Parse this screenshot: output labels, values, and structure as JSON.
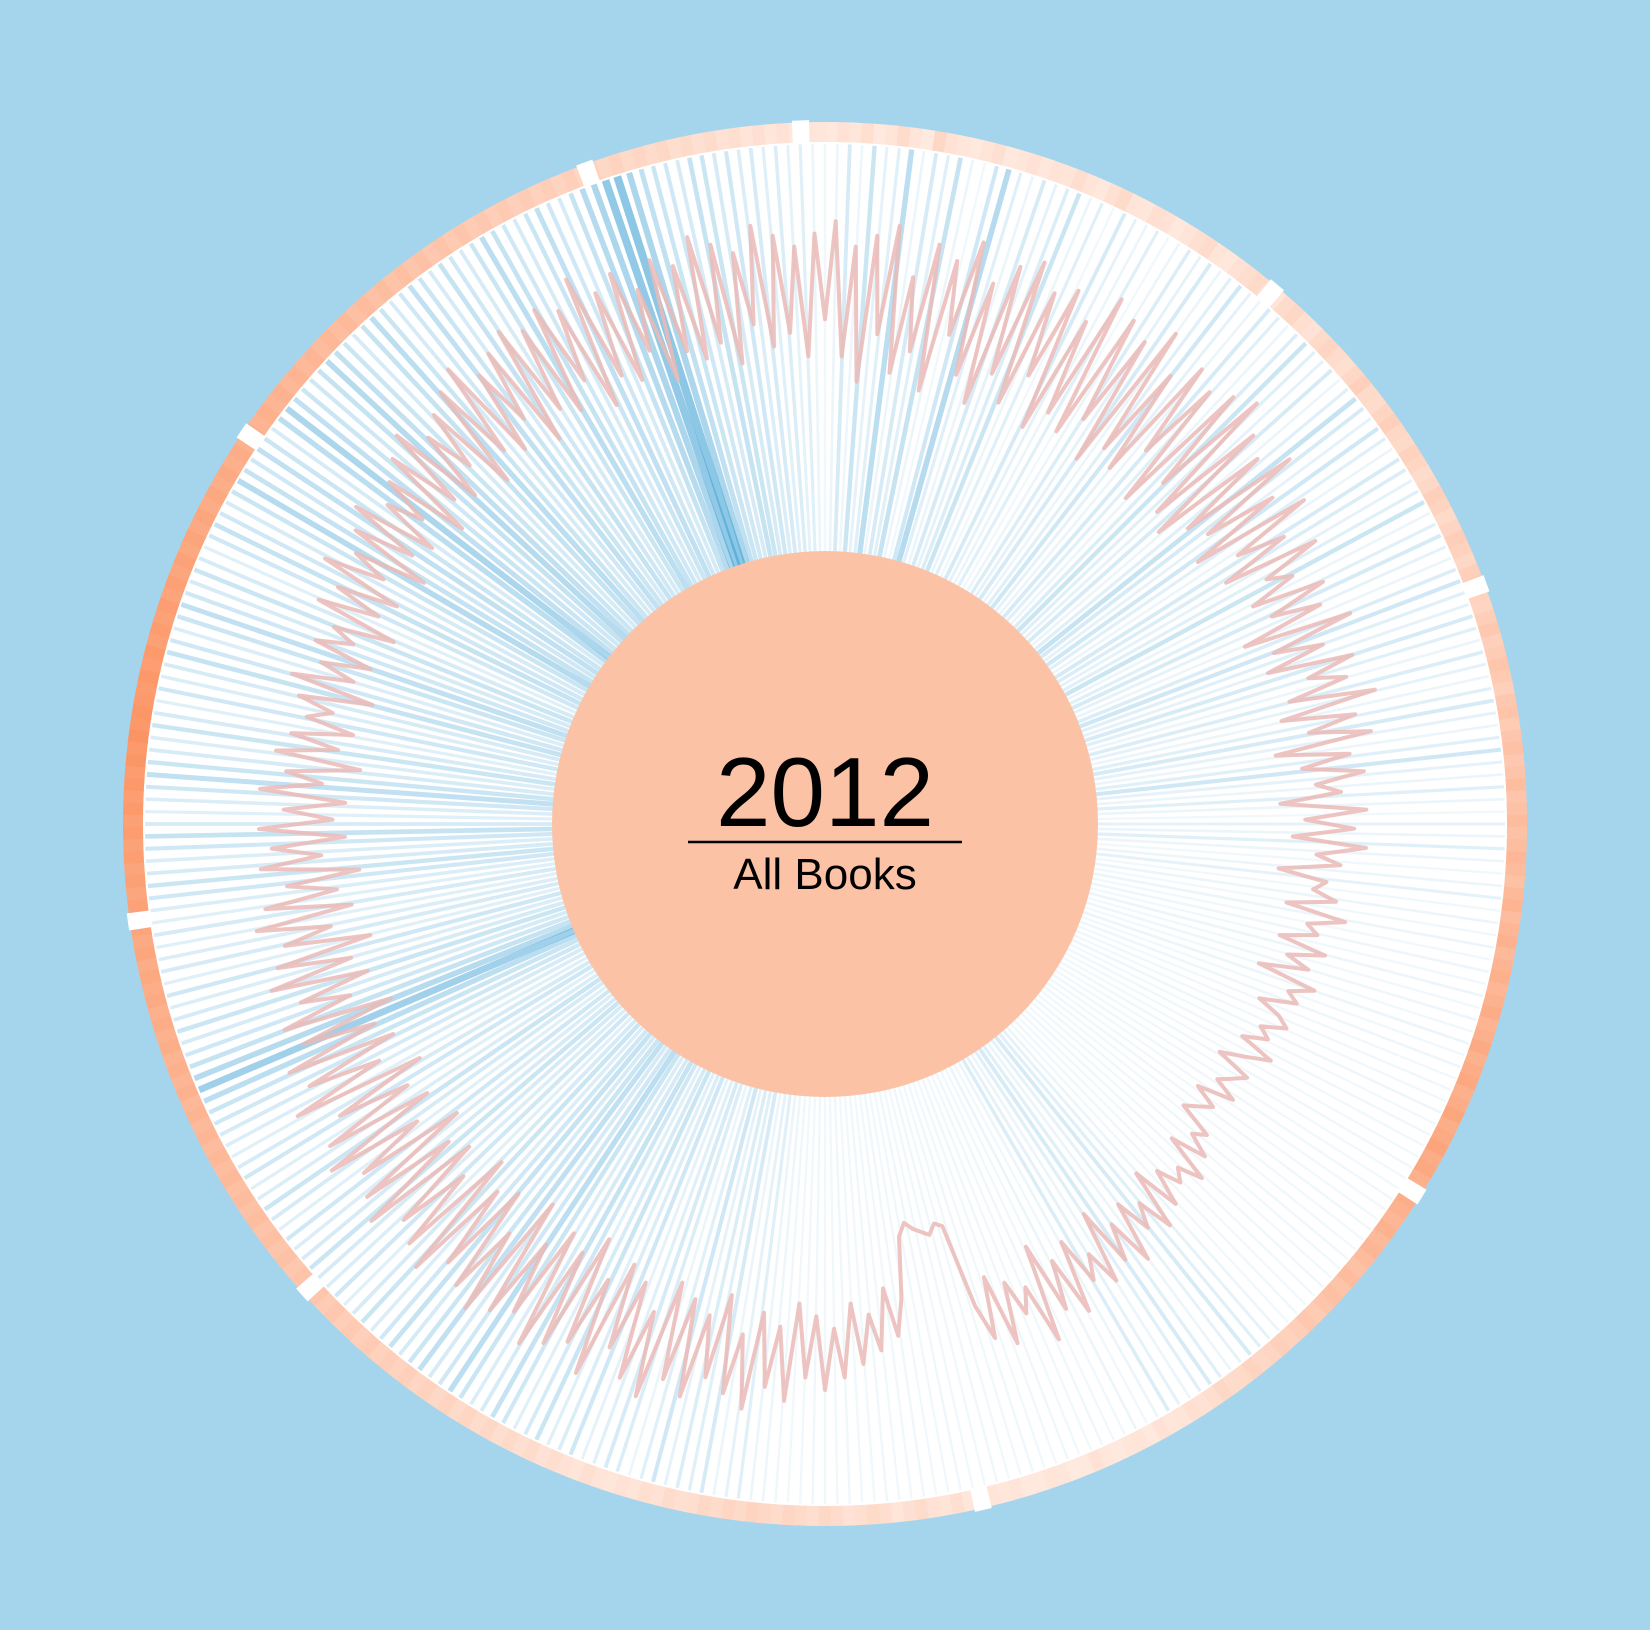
{
  "chart_data": {
    "type": "radial",
    "title": "2012",
    "subtitle": "All Books",
    "series": [
      {
        "name": "",
        "role": "outer-ring-heat",
        "values": [
          0.05,
          0.12,
          0.08,
          0.15,
          0.06,
          0.1,
          0.18,
          0.09,
          0.04,
          0.22,
          0.12,
          0.08,
          0.06,
          0.1,
          0.14,
          0.05,
          0.08,
          0.12,
          0.07,
          0.11,
          0.09,
          0.16,
          0.1,
          0.06,
          0.13,
          0.2,
          0.1,
          0.08,
          0.15,
          0.12,
          0.05,
          0.09,
          0.14,
          0.18,
          0.1,
          0.07,
          0.12,
          0.16,
          0.2,
          0.14,
          0.1,
          0.18,
          0.22,
          0.15,
          0.12,
          0.2,
          0.25,
          0.18,
          0.15,
          0.22,
          0.3,
          0.2,
          0.18,
          0.25,
          0.3,
          0.22,
          0.2,
          0.28,
          0.24,
          0.18,
          0.22,
          0.3,
          0.26,
          0.2,
          0.25,
          0.32,
          0.28,
          0.22,
          0.3,
          0.35,
          0.28,
          0.25,
          0.32,
          0.38,
          0.3,
          0.34,
          0.4,
          0.36,
          0.3,
          0.38,
          0.42,
          0.35,
          0.4,
          0.45,
          0.38,
          0.42,
          0.48,
          0.4,
          0.45,
          0.5,
          0.44,
          0.48,
          0.55,
          0.5,
          0.45,
          0.52,
          0.58,
          0.5,
          0.55,
          0.6,
          0.52,
          0.58,
          0.62,
          0.55,
          0.6,
          0.65,
          0.58,
          0.62,
          0.68,
          0.6,
          0.65,
          0.7,
          0.62,
          0.66,
          0.72,
          0.64,
          0.68,
          0.74,
          0.66,
          0.7,
          0.62,
          0.58,
          0.64,
          0.6,
          0.55,
          0.6,
          0.52,
          0.56,
          0.5,
          0.45,
          0.5,
          0.42,
          0.46,
          0.4,
          0.35,
          0.38,
          0.32,
          0.28,
          0.3,
          0.25,
          0.22,
          0.26,
          0.2,
          0.18,
          0.22,
          0.16,
          0.12,
          0.15,
          0.1,
          0.08,
          0.12,
          0.06,
          0.1,
          0.08,
          0.05,
          0.07,
          0.12,
          0.06,
          0.04,
          0.08,
          0.1,
          0.06,
          0.05,
          0.09,
          0.07,
          0.1,
          0.12,
          0.08,
          0.15,
          0.1,
          0.12,
          0.18,
          0.14,
          0.1,
          0.16,
          0.2,
          0.15,
          0.12,
          0.18,
          0.22,
          0.16,
          0.2,
          0.24,
          0.18,
          0.22,
          0.26,
          0.2,
          0.24,
          0.18,
          0.22,
          0.16,
          0.14,
          0.18,
          0.12,
          0.15,
          0.1,
          0.12,
          0.08,
          0.1,
          0.14,
          0.1,
          0.12,
          0.16,
          0.12,
          0.18,
          0.14,
          0.2,
          0.16,
          0.22,
          0.18,
          0.24,
          0.2,
          0.26,
          0.22,
          0.28,
          0.24,
          0.3,
          0.26,
          0.32,
          0.28,
          0.34,
          0.3,
          0.36,
          0.32,
          0.38,
          0.34,
          0.4,
          0.36,
          0.42,
          0.38,
          0.44,
          0.4,
          0.46,
          0.42,
          0.48,
          0.44,
          0.5,
          0.46,
          0.52,
          0.48,
          0.54,
          0.5,
          0.56,
          0.52,
          0.58,
          0.54,
          0.6,
          0.56,
          0.62,
          0.58,
          0.64,
          0.6,
          0.66,
          0.62,
          0.68,
          0.64,
          0.7,
          0.66,
          0.72,
          0.68,
          0.74,
          0.7,
          0.76,
          0.72,
          0.78,
          0.74,
          0.8,
          0.76,
          0.82,
          0.78,
          0.84,
          0.8,
          0.86,
          0.82,
          0.88,
          0.84,
          0.9,
          0.86,
          0.88,
          0.84,
          0.82,
          0.86,
          0.8,
          0.84,
          0.78,
          0.82,
          0.76,
          0.8,
          0.74,
          0.78,
          0.72,
          0.76,
          0.7,
          0.74,
          0.68,
          0.72,
          0.66,
          0.7,
          0.64,
          0.68,
          0.62,
          0.66,
          0.6,
          0.64,
          0.58,
          0.62,
          0.56,
          0.6,
          0.54,
          0.58,
          0.52,
          0.56,
          0.5,
          0.54,
          0.48,
          0.52,
          0.46,
          0.5,
          0.44,
          0.48,
          0.42,
          0.46,
          0.4,
          0.44,
          0.38,
          0.42,
          0.36,
          0.4,
          0.34,
          0.38,
          0.32,
          0.36,
          0.3,
          0.34,
          0.28,
          0.32,
          0.26,
          0.3,
          0.24,
          0.28,
          0.22,
          0.26,
          0.2,
          0.24,
          0.18,
          0.22,
          0.16,
          0.2,
          0.14,
          0.18,
          0.12,
          0.16,
          0.1,
          0.14,
          0.08,
          0.12,
          0.06,
          0.1,
          0.08
        ]
      },
      {
        "name": "",
        "role": "spoke-intensity",
        "values": [
          0.05,
          0.1,
          0.3,
          0.08,
          0.4,
          0.15,
          0.2,
          0.55,
          0.1,
          0.3,
          0.2,
          0.45,
          0.1,
          0.05,
          0.35,
          0.6,
          0.2,
          0.1,
          0.3,
          0.15,
          0.25,
          0.4,
          0.1,
          0.2,
          0.05,
          0.3,
          0.15,
          0.1,
          0.2,
          0.05,
          0.1,
          0.25,
          0.15,
          0.3,
          0.1,
          0.2,
          0.35,
          0.15,
          0.1,
          0.3,
          0.2,
          0.1,
          0.25,
          0.4,
          0.2,
          0.15,
          0.3,
          0.1,
          0.2,
          0.45,
          0.3,
          0.15,
          0.35,
          0.2,
          0.1,
          0.3,
          0.25,
          0.15,
          0.2,
          0.4,
          0.1,
          0.2,
          0.3,
          0.15,
          0.1,
          0.25,
          0.35,
          0.2,
          0.15,
          0.3,
          0.2,
          0.1,
          0.25,
          0.15,
          0.1,
          0.2,
          0.3,
          0.15,
          0.1,
          0.2,
          0.35,
          0.15,
          0.1,
          0.2,
          0.1,
          0.05,
          0.15,
          0.1,
          0.2,
          0.1,
          0.05,
          0.1,
          0.15,
          0.05,
          0.1,
          0.05,
          0.1,
          0.05,
          0.08,
          0.05,
          0.1,
          0.05,
          0.08,
          0.05,
          0.1,
          0.05,
          0.08,
          0.04,
          0.06,
          0.05,
          0.08,
          0.04,
          0.06,
          0.05,
          0.04,
          0.06,
          0.05,
          0.04,
          0.06,
          0.05,
          0.04,
          0.06,
          0.05,
          0.04,
          0.06,
          0.05,
          0.04,
          0.06,
          0.05,
          0.04,
          0.06,
          0.05,
          0.1,
          0.15,
          0.2,
          0.3,
          0.15,
          0.1,
          0.2,
          0.3,
          0.2,
          0.1,
          0.15,
          0.25,
          0.1,
          0.05,
          0.1,
          0.05,
          0.04,
          0.06,
          0.05,
          0.04,
          0.06,
          0.05,
          0.04,
          0.06,
          0.05,
          0.04,
          0.06,
          0.05,
          0.04,
          0.06,
          0.05,
          0.04,
          0.06,
          0.05,
          0.04,
          0.06,
          0.05,
          0.04,
          0.06,
          0.05,
          0.04,
          0.06,
          0.05,
          0.04,
          0.06,
          0.08,
          0.1,
          0.2,
          0.15,
          0.1,
          0.3,
          0.2,
          0.25,
          0.15,
          0.35,
          0.2,
          0.1,
          0.25,
          0.3,
          0.2,
          0.15,
          0.35,
          0.25,
          0.2,
          0.4,
          0.3,
          0.2,
          0.35,
          0.45,
          0.3,
          0.25,
          0.4,
          0.55,
          0.35,
          0.3,
          0.5,
          0.4,
          0.3,
          0.45,
          0.35,
          0.25,
          0.4,
          0.3,
          0.2,
          0.35,
          0.25,
          0.3,
          0.4,
          0.3,
          0.25,
          0.35,
          0.2,
          0.3,
          0.4,
          0.25,
          0.2,
          0.35,
          0.3,
          0.2,
          0.25,
          0.3,
          0.35,
          0.4,
          0.55,
          0.8,
          0.6,
          0.45,
          0.35,
          0.3,
          0.4,
          0.3,
          0.25,
          0.35,
          0.2,
          0.3,
          0.25,
          0.2,
          0.3,
          0.2,
          0.25,
          0.35,
          0.4,
          0.3,
          0.25,
          0.35,
          0.45,
          0.3,
          0.2,
          0.25,
          0.35,
          0.5,
          0.4,
          0.3,
          0.25,
          0.4,
          0.3,
          0.2,
          0.35,
          0.25,
          0.3,
          0.45,
          0.35,
          0.25,
          0.4,
          0.5,
          0.35,
          0.3,
          0.4,
          0.3,
          0.2,
          0.35,
          0.45,
          0.35,
          0.3,
          0.4,
          0.6,
          0.45,
          0.35,
          0.5,
          0.4,
          0.3,
          0.55,
          0.7,
          0.5,
          0.4,
          0.35,
          0.45,
          0.6,
          0.5,
          0.4,
          0.3,
          0.45,
          0.55,
          0.4,
          0.3,
          0.35,
          0.5,
          0.4,
          0.3,
          0.45,
          0.35,
          0.3,
          0.4,
          0.55,
          0.45,
          0.35,
          0.3,
          0.4,
          0.5,
          0.35,
          0.3,
          0.45,
          0.6,
          0.7,
          0.95,
          1.0,
          0.7,
          0.5,
          0.4,
          0.35,
          0.3,
          0.45,
          0.4,
          0.3,
          0.35,
          0.25,
          0.3,
          0.2,
          0.25,
          0.15,
          0.2,
          0.1
        ]
      },
      {
        "name": "",
        "role": "radial-line",
        "values": [
          0.55,
          0.95,
          0.4,
          0.85,
          0.3,
          0.9,
          0.5,
          0.95,
          0.35,
          0.75,
          0.45,
          0.9,
          0.3,
          0.85,
          0.55,
          0.95,
          0.4,
          0.8,
          0.3,
          0.9,
          0.45,
          0.95,
          0.35,
          0.85,
          0.5,
          0.9,
          0.3,
          0.8,
          0.4,
          0.95,
          0.35,
          0.9,
          0.45,
          0.85,
          0.3,
          0.95,
          0.4,
          0.8,
          0.35,
          0.9,
          0.5,
          0.85,
          0.3,
          0.9,
          0.45,
          0.95,
          0.35,
          0.85,
          0.3,
          0.8,
          0.4,
          0.9,
          0.45,
          0.75,
          0.35,
          0.85,
          0.5,
          0.7,
          0.4,
          0.8,
          0.55,
          0.65,
          0.45,
          0.75,
          0.5,
          0.7,
          0.35,
          0.8,
          0.45,
          0.65,
          0.4,
          0.75,
          0.55,
          0.7,
          0.45,
          0.8,
          0.4,
          0.7,
          0.5,
          0.75,
          0.35,
          0.65,
          0.45,
          0.7,
          0.5,
          0.6,
          0.35,
          0.7,
          0.45,
          0.65,
          0.4,
          0.7,
          0.5,
          0.6,
          0.35,
          0.55,
          0.5,
          0.6,
          0.4,
          0.65,
          0.5,
          0.55,
          0.4,
          0.6,
          0.45,
          0.55,
          0.35,
          0.6,
          0.5,
          0.55,
          0.4,
          0.5,
          0.55,
          0.45,
          0.5,
          0.4,
          0.55,
          0.45,
          0.35,
          0.5,
          0.45,
          0.4,
          0.5,
          0.35,
          0.45,
          0.4,
          0.35,
          0.5,
          0.45,
          0.55,
          0.4,
          0.6,
          0.5,
          0.55,
          0.45,
          0.6,
          0.4,
          0.65,
          0.5,
          0.6,
          0.45,
          0.7,
          0.5,
          0.65,
          0.4,
          0.7,
          0.55,
          0.65,
          0.45,
          0.75,
          0.5,
          0.7,
          0.4,
          0.8,
          0.55,
          0.65,
          0.5,
          0.75,
          0.45,
          0.7,
          0.55,
          0.2,
          0.18,
          0.22,
          0.2,
          0.18,
          0.15,
          0.2,
          0.45,
          0.6,
          0.4,
          0.65,
          0.5,
          0.7,
          0.45,
          0.75,
          0.55,
          0.8,
          0.5,
          0.75,
          0.45,
          0.85,
          0.55,
          0.8,
          0.5,
          0.9,
          0.6,
          0.85,
          0.45,
          0.8,
          0.55,
          0.9,
          0.5,
          0.85,
          0.45,
          0.95,
          0.6,
          0.9,
          0.5,
          0.8,
          0.45,
          0.95,
          0.55,
          0.85,
          0.4,
          0.9,
          0.5,
          0.95,
          0.45,
          0.85,
          0.55,
          0.9,
          0.4,
          0.95,
          0.6,
          0.9,
          0.45,
          0.85,
          0.5,
          0.95,
          0.4,
          0.9,
          0.55,
          0.85,
          0.45,
          0.95,
          0.5,
          0.9,
          0.4,
          0.85,
          0.55,
          0.95,
          0.45,
          0.9,
          0.5,
          0.8,
          0.4,
          0.95,
          0.55,
          0.85,
          0.45,
          0.9,
          0.5,
          0.8,
          0.4,
          0.85,
          0.55,
          0.75,
          0.45,
          0.85,
          0.5,
          0.8,
          0.4,
          0.75,
          0.55,
          0.85,
          0.45,
          0.8,
          0.5,
          0.7,
          0.4,
          0.8,
          0.55,
          0.75,
          0.45,
          0.8,
          0.5,
          0.7,
          0.45,
          0.8,
          0.55,
          0.7,
          0.4,
          0.75,
          0.5,
          0.7,
          0.45,
          0.65,
          0.55,
          0.7,
          0.4,
          0.75,
          0.5,
          0.65,
          0.45,
          0.7,
          0.55,
          0.65,
          0.4,
          0.75,
          0.5,
          0.7,
          0.45,
          0.8,
          0.55,
          0.7,
          0.4,
          0.75,
          0.5,
          0.8,
          0.45,
          0.7,
          0.55,
          0.75,
          0.4,
          0.8,
          0.5,
          0.85,
          0.45,
          0.75,
          0.55,
          0.8,
          0.4,
          0.85,
          0.5,
          0.9,
          0.45,
          0.8,
          0.55,
          0.85,
          0.4,
          0.9,
          0.5,
          0.85,
          0.45,
          0.9,
          0.55,
          0.85,
          0.4,
          0.95,
          0.5,
          0.85,
          0.45,
          0.9,
          0.55,
          0.8,
          0.4,
          0.9,
          0.5,
          0.85,
          0.45,
          0.95,
          0.5,
          0.9,
          0.4,
          0.85,
          0.55,
          0.95,
          0.45,
          0.9,
          0.5,
          0.85,
          0.4,
          0.9
        ]
      }
    ],
    "ring_gaps_deg": [
      -92,
      -110,
      -146,
      -188,
      -222,
      -283,
      -328,
      310,
      340
    ],
    "colors": {
      "background": "#a5d5ed",
      "disc": "#ffffff",
      "center": "#fcc2a6",
      "line": "#eabab6",
      "spoke": "#3fa1d4",
      "ring_low": "#ffeee6",
      "ring_high": "#fb8a55"
    },
    "legend": "none",
    "grid": false
  }
}
